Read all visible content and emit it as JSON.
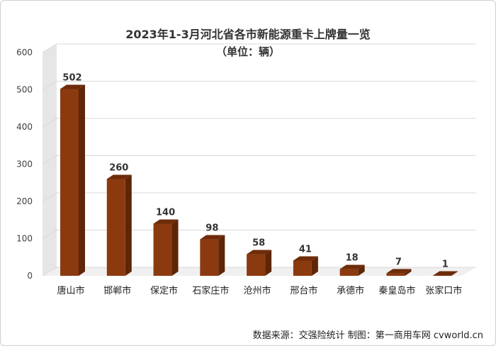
{
  "chart_data": {
    "type": "bar",
    "title": "2023年1-3月河北省各市新能源重卡上牌量一览",
    "subtitle": "（单位：辆）",
    "categories": [
      "唐山市",
      "邯郸市",
      "保定市",
      "石家庄市",
      "沧州市",
      "邢台市",
      "承德市",
      "秦皇岛市",
      "张家口市"
    ],
    "values": [
      502,
      260,
      140,
      98,
      58,
      41,
      18,
      7,
      1
    ],
    "value_labels": [
      "502",
      "260",
      "140",
      "98",
      "58",
      "41",
      "18",
      "7",
      "1"
    ],
    "ylim": [
      0,
      600
    ],
    "yticks": [
      "0",
      "100",
      "200",
      "300",
      "400",
      "500",
      "600"
    ],
    "ytick_values": [
      0,
      100,
      200,
      300,
      400,
      500,
      600
    ],
    "grid": true,
    "colors": {
      "bar_front": "#8B3A0F",
      "bar_side": "#5E2508",
      "bar_top": "#6E2C0A",
      "grid": "#d9d9d9",
      "wall": "#e6e6e6"
    }
  },
  "footer": {
    "source": "数据来源：交强险统计  制图：第一商用车网 cvworld.cn"
  }
}
